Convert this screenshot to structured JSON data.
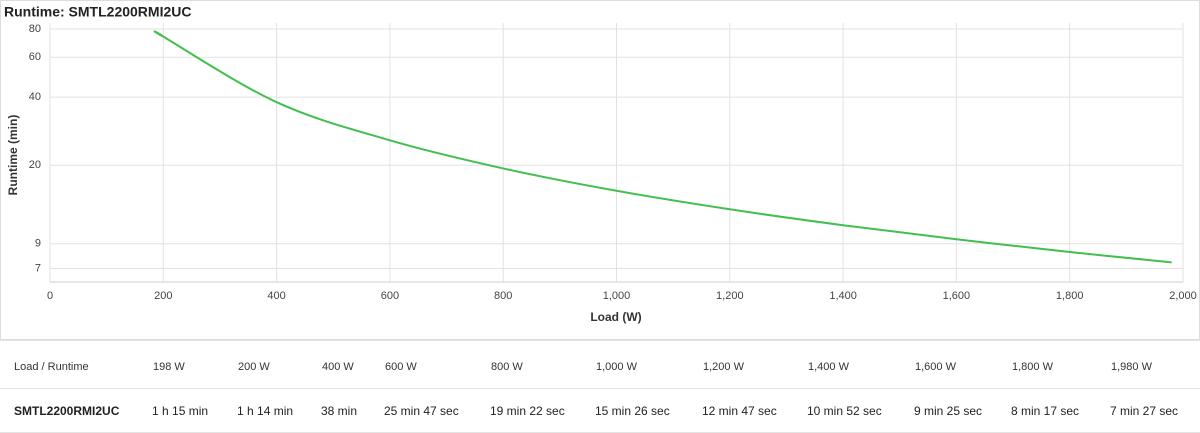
{
  "chart_data": {
    "type": "line",
    "title": "Runtime: SMTL2200RMI2UC",
    "x_label": "Load (W)",
    "y_label": "Runtime (min)",
    "x": [
      198,
      200,
      400,
      600,
      800,
      1000,
      1200,
      1400,
      1600,
      1800,
      1980
    ],
    "series": [
      {
        "name": "SMTL2200RMI2UC",
        "color": "#43bf4f",
        "values": [
          75,
          74,
          38,
          25.78,
          19.37,
          15.43,
          12.78,
          10.87,
          9.42,
          8.28,
          7.45
        ]
      }
    ],
    "xlim": [
      0,
      2000
    ],
    "xticks": [
      0,
      200,
      400,
      600,
      800,
      {
        "value": 1000,
        "label": "1,000"
      },
      {
        "value": 1200,
        "label": "1,200"
      },
      {
        "value": 1400,
        "label": "1,400"
      },
      {
        "value": 1600,
        "label": "1,600"
      },
      {
        "value": 1800,
        "label": "1,800"
      },
      {
        "value": 2000,
        "label": "2,000"
      }
    ],
    "ylim": [
      6.1,
      80
    ],
    "yticks": [
      7,
      9,
      20,
      40,
      60,
      80
    ],
    "log_y": true,
    "grid": true
  },
  "table": {
    "header": [
      "Load / Runtime",
      "198 W",
      "200 W",
      "400 W",
      "600 W",
      "800 W",
      "1,000 W",
      "1,200 W",
      "1,400 W",
      "1,600 W",
      "1,800 W",
      "1,980 W"
    ],
    "rows": [
      [
        "SMTL2200RMI2UC",
        "1 h 15 min",
        "1 h 14 min",
        "38 min",
        "25 min 47 sec",
        "19 min 22 sec",
        "15 min 26 sec",
        "12 min 47 sec",
        "10 min 52 sec",
        "9 min 25 sec",
        "8 min 17 sec",
        "7 min 27 sec"
      ]
    ]
  }
}
